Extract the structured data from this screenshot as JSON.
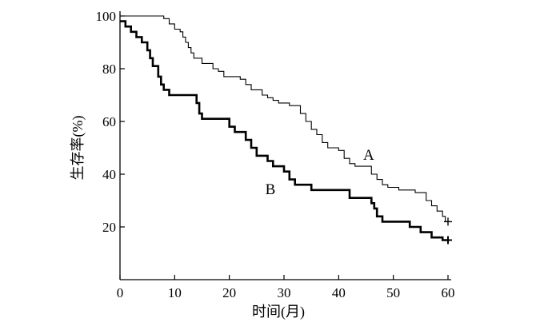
{
  "chart_data": {
    "type": "line",
    "step": true,
    "xlabel": "时间(月)",
    "ylabel": "生存率(%)",
    "xlim": [
      0,
      60
    ],
    "ylim": [
      0,
      100
    ],
    "xticks": [
      0,
      10,
      20,
      30,
      40,
      50,
      60
    ],
    "yticks": [
      20,
      40,
      60,
      80,
      100
    ],
    "grid": false,
    "legend": "none",
    "series": [
      {
        "name": "A",
        "line_weight": "thin",
        "censored_end": true,
        "points": [
          [
            0,
            100
          ],
          [
            8,
            100
          ],
          [
            8,
            99
          ],
          [
            9,
            99
          ],
          [
            9,
            97
          ],
          [
            10,
            97
          ],
          [
            10,
            95
          ],
          [
            11,
            95
          ],
          [
            11,
            94
          ],
          [
            11.5,
            94
          ],
          [
            11.5,
            92
          ],
          [
            12,
            92
          ],
          [
            12,
            90
          ],
          [
            12.5,
            90
          ],
          [
            12.5,
            88
          ],
          [
            13,
            88
          ],
          [
            13,
            86
          ],
          [
            13.5,
            86
          ],
          [
            13.5,
            84
          ],
          [
            15,
            84
          ],
          [
            15,
            82
          ],
          [
            17,
            82
          ],
          [
            17,
            80
          ],
          [
            18,
            80
          ],
          [
            18,
            79
          ],
          [
            19,
            79
          ],
          [
            19,
            77
          ],
          [
            22,
            77
          ],
          [
            22,
            76
          ],
          [
            23,
            76
          ],
          [
            23,
            74
          ],
          [
            24,
            74
          ],
          [
            24,
            72
          ],
          [
            26,
            72
          ],
          [
            26,
            70
          ],
          [
            27,
            70
          ],
          [
            27,
            69
          ],
          [
            28,
            69
          ],
          [
            28,
            68
          ],
          [
            29,
            68
          ],
          [
            29,
            67
          ],
          [
            31,
            67
          ],
          [
            31,
            66
          ],
          [
            33,
            66
          ],
          [
            33,
            63
          ],
          [
            34,
            63
          ],
          [
            34,
            60
          ],
          [
            35,
            60
          ],
          [
            35,
            57
          ],
          [
            36,
            57
          ],
          [
            36,
            55
          ],
          [
            37,
            55
          ],
          [
            37,
            52
          ],
          [
            38,
            52
          ],
          [
            38,
            50
          ],
          [
            40,
            50
          ],
          [
            40,
            49
          ],
          [
            41,
            49
          ],
          [
            41,
            46
          ],
          [
            42,
            46
          ],
          [
            42,
            44
          ],
          [
            43,
            44
          ],
          [
            43,
            43
          ],
          [
            46,
            43
          ],
          [
            46,
            40
          ],
          [
            47,
            40
          ],
          [
            47,
            38
          ],
          [
            48,
            38
          ],
          [
            48,
            36
          ],
          [
            49,
            36
          ],
          [
            49,
            35
          ],
          [
            51,
            35
          ],
          [
            51,
            34
          ],
          [
            54,
            34
          ],
          [
            54,
            33
          ],
          [
            56,
            33
          ],
          [
            56,
            30
          ],
          [
            57,
            30
          ],
          [
            57,
            28
          ],
          [
            58,
            28
          ],
          [
            58,
            26
          ],
          [
            59,
            26
          ],
          [
            59,
            24
          ],
          [
            59.5,
            24
          ],
          [
            59.5,
            22
          ],
          [
            60,
            22
          ]
        ]
      },
      {
        "name": "B",
        "line_weight": "thick",
        "censored_end": true,
        "points": [
          [
            0,
            98
          ],
          [
            1,
            98
          ],
          [
            1,
            96
          ],
          [
            2,
            96
          ],
          [
            2,
            94
          ],
          [
            3,
            94
          ],
          [
            3,
            92
          ],
          [
            4,
            92
          ],
          [
            4,
            90
          ],
          [
            5,
            90
          ],
          [
            5,
            87
          ],
          [
            5.5,
            87
          ],
          [
            5.5,
            84
          ],
          [
            6,
            84
          ],
          [
            6,
            81
          ],
          [
            7,
            81
          ],
          [
            7,
            77
          ],
          [
            7.5,
            77
          ],
          [
            7.5,
            74
          ],
          [
            8,
            74
          ],
          [
            8,
            72
          ],
          [
            9,
            72
          ],
          [
            9,
            70
          ],
          [
            14,
            70
          ],
          [
            14,
            67
          ],
          [
            14.5,
            67
          ],
          [
            14.5,
            63
          ],
          [
            15,
            63
          ],
          [
            15,
            61
          ],
          [
            20,
            61
          ],
          [
            20,
            58
          ],
          [
            21,
            58
          ],
          [
            21,
            56
          ],
          [
            23,
            56
          ],
          [
            23,
            53
          ],
          [
            24,
            53
          ],
          [
            24,
            50
          ],
          [
            25,
            50
          ],
          [
            25,
            47
          ],
          [
            27,
            47
          ],
          [
            27,
            45
          ],
          [
            28,
            45
          ],
          [
            28,
            43
          ],
          [
            30,
            43
          ],
          [
            30,
            41
          ],
          [
            31,
            41
          ],
          [
            31,
            38
          ],
          [
            32,
            38
          ],
          [
            32,
            36
          ],
          [
            35,
            36
          ],
          [
            35,
            34
          ],
          [
            42,
            34
          ],
          [
            42,
            31
          ],
          [
            46,
            31
          ],
          [
            46,
            29
          ],
          [
            46.5,
            29
          ],
          [
            46.5,
            27
          ],
          [
            47,
            27
          ],
          [
            47,
            24
          ],
          [
            48,
            24
          ],
          [
            48,
            22
          ],
          [
            53,
            22
          ],
          [
            53,
            20
          ],
          [
            55,
            20
          ],
          [
            55,
            18
          ],
          [
            57,
            18
          ],
          [
            57,
            16
          ],
          [
            59,
            16
          ],
          [
            59,
            15
          ],
          [
            60,
            15
          ]
        ]
      }
    ]
  }
}
